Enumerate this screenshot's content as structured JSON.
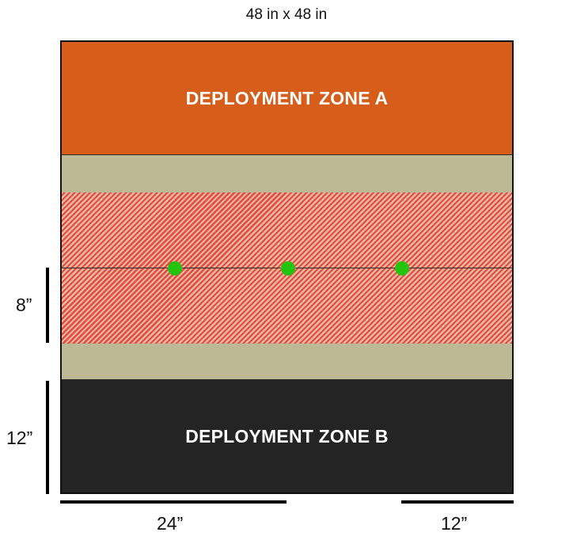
{
  "board": {
    "title": "48 in x 48 in",
    "colors": {
      "zone_a": "#d65e1a",
      "zone_b": "#242424",
      "no_mans_land": "#bcb994",
      "hatch_stripe": "#e74b3c",
      "objective": "#22c40f"
    }
  },
  "zones": {
    "a_label": "DEPLOYMENT ZONE A",
    "b_label": "DEPLOYMENT ZONE B"
  },
  "measurements": {
    "left_upper": "8”",
    "left_lower": "12”",
    "bottom_left": "24”",
    "bottom_right": "12”"
  },
  "objectives": [
    {
      "name": "objective-marker-left"
    },
    {
      "name": "objective-marker-center"
    },
    {
      "name": "objective-marker-right"
    }
  ]
}
